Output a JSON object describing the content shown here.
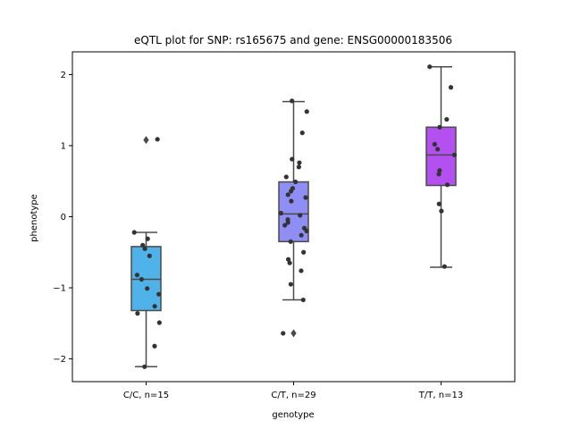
{
  "chart_data": {
    "type": "box",
    "title": "eQTL plot for SNP: rs165675 and gene: ENSG00000183506",
    "xlabel": "genotype",
    "ylabel": "phenotype",
    "ylim": [
      -2.32,
      2.32
    ],
    "yticks": [
      -2,
      -1,
      0,
      1,
      2
    ],
    "yticklabels": [
      "−2",
      "−1",
      "0",
      "1",
      "2"
    ],
    "grid": false,
    "legend": "none",
    "categories": [
      "C/C, n=15",
      "C/T, n=29",
      "T/T, n=13"
    ],
    "groups": [
      {
        "label": "C/C, n=15",
        "color": "#4fb3ea",
        "box": {
          "q1": -1.32,
          "median": -0.88,
          "q3": -0.42,
          "whisker_low": -2.11,
          "whisker_high": -0.22
        },
        "outliers": [
          1.08
        ],
        "points": [
          1.09,
          -0.22,
          -0.31,
          -0.4,
          -0.45,
          -0.55,
          -0.82,
          -0.88,
          -1.01,
          -1.09,
          -1.26,
          -1.36,
          -1.49,
          -1.82,
          -2.11
        ]
      },
      {
        "label": "C/T, n=29",
        "color": "#8e8ef4",
        "box": {
          "q1": -0.35,
          "median": 0.04,
          "q3": 0.49,
          "whisker_low": -1.17,
          "whisker_high": 1.62
        },
        "outliers": [
          -1.64
        ],
        "points": [
          1.63,
          1.48,
          1.18,
          0.81,
          0.76,
          0.7,
          0.56,
          0.49,
          0.4,
          0.36,
          0.31,
          0.27,
          0.22,
          0.05,
          0.02,
          -0.04,
          -0.08,
          -0.12,
          -0.16,
          -0.2,
          -0.26,
          -0.35,
          -0.5,
          -0.6,
          -0.65,
          -0.76,
          -0.95,
          -1.17,
          -1.64
        ]
      },
      {
        "label": "T/T, n=13",
        "color": "#b44ff0",
        "box": {
          "q1": 0.44,
          "median": 0.87,
          "q3": 1.26,
          "whisker_low": -0.71,
          "whisker_high": 2.11
        },
        "outliers": [],
        "points": [
          2.11,
          1.82,
          1.37,
          1.26,
          1.02,
          0.95,
          0.87,
          0.65,
          0.6,
          0.45,
          0.18,
          0.08,
          -0.7
        ]
      }
    ]
  }
}
